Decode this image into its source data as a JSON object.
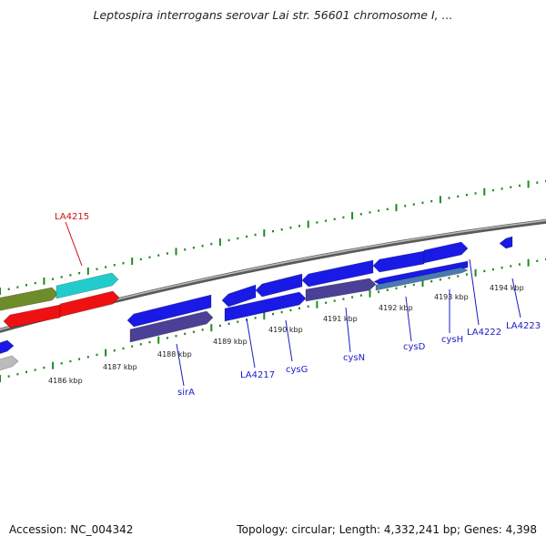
{
  "title": "Leptospira interrogans serovar Lai str. 56601 chromosome I, ...",
  "footer": {
    "accession": "Accession: NC_004342",
    "stats": "Topology: circular; Length: 4,332,241 bp; Genes: 4,398"
  },
  "ruler_labels": [
    "4186 kbp",
    "4187 kbp",
    "4188 kbp",
    "4189 kbp",
    "4190 kbp",
    "4191 kbp",
    "4192 kbp",
    "4193 kbp",
    "4194 kbp"
  ],
  "gene_labels": {
    "LA4215": "LA4215",
    "sirA": "sirA",
    "LA4217": "LA4217",
    "cysG": "cysG",
    "cysN": "cysN",
    "cysD": "cysD",
    "cysH": "cysH",
    "LA4222": "LA4222",
    "LA4223": "LA4223"
  },
  "colors": {
    "gene_blue": "#1a1ae6",
    "gene_dark_slate": "#4a4096",
    "gene_red": "#ee1111",
    "gene_olive": "#6e8c2a",
    "gene_cyan": "#22cccc",
    "gene_steel": "#4a7ab0",
    "gene_grey": "#bbbbbb",
    "backbone": "#8a8a8a",
    "tick_green": "#1f8a1f",
    "label_blue": "#1a1ac8",
    "label_red": "#d01010"
  }
}
